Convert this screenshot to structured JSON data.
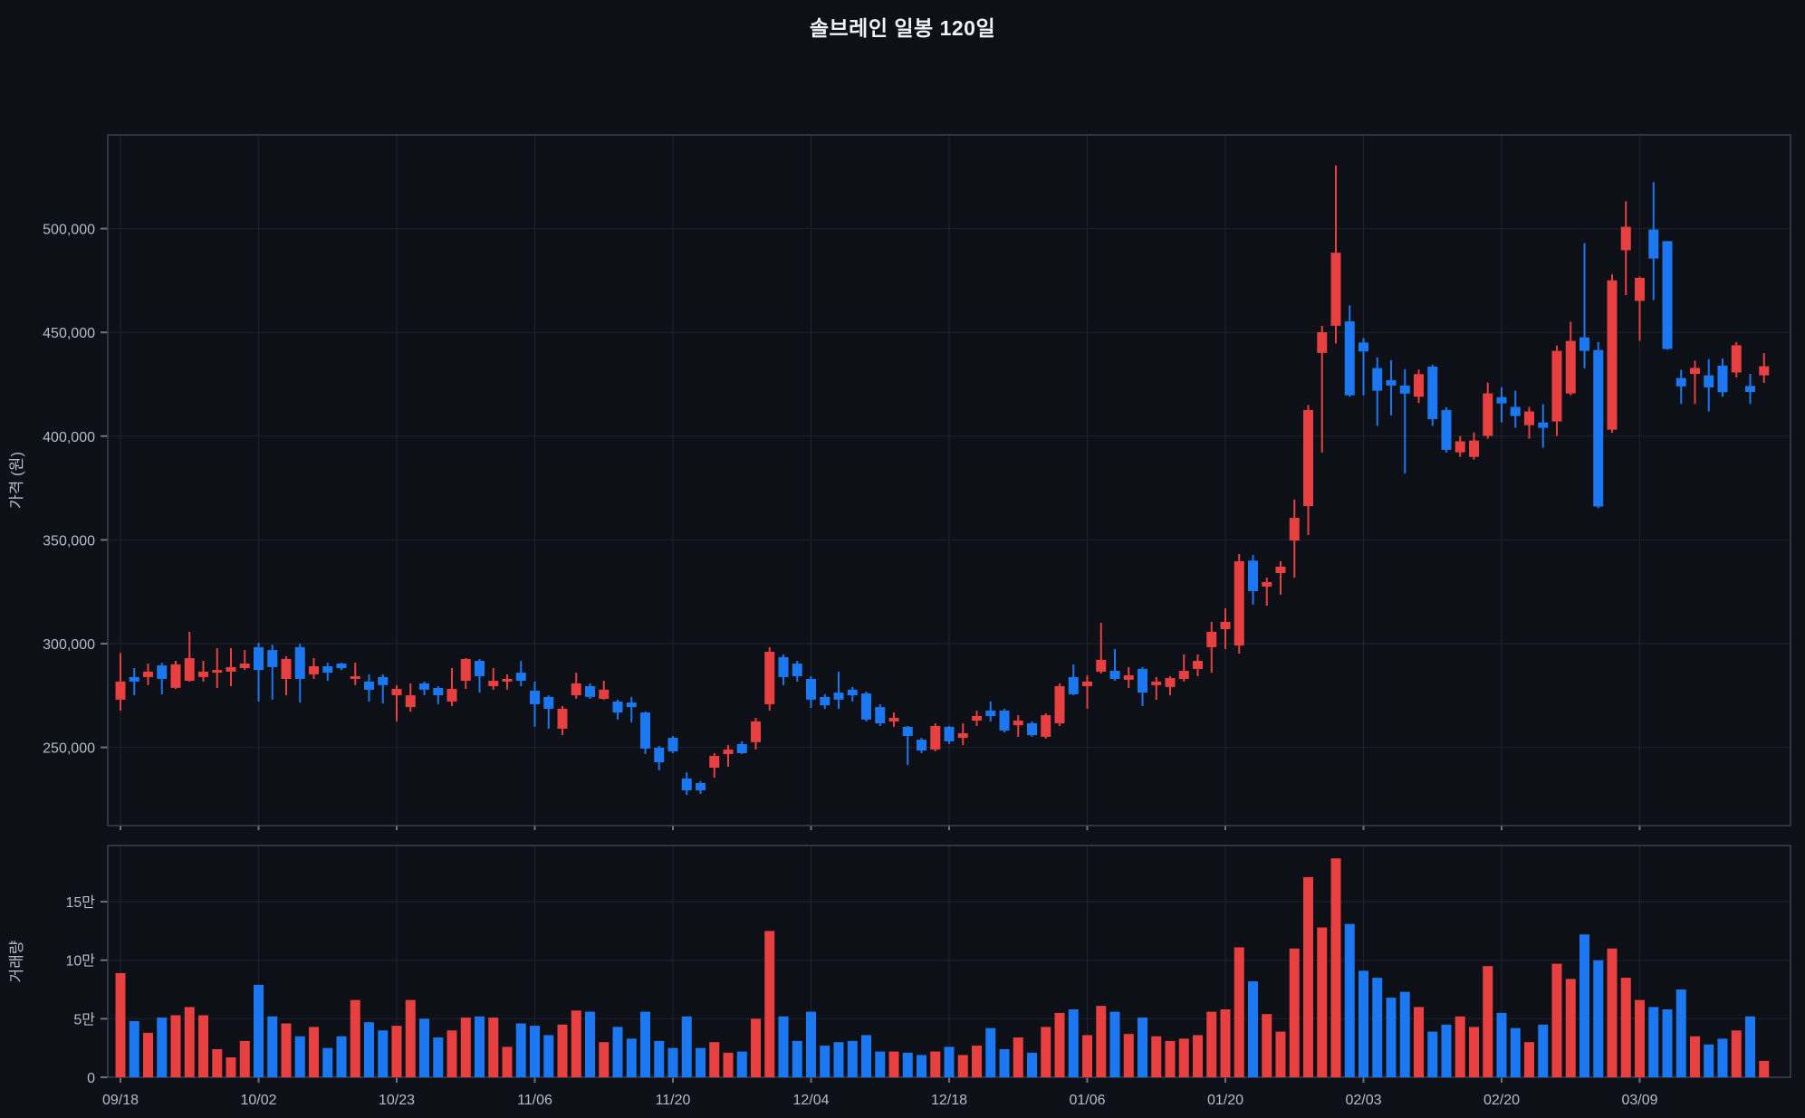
{
  "title": "솔브레인 일봉 120일",
  "colors": {
    "background": "#0d1117",
    "up": "#e84040",
    "down": "#1b78f2",
    "grid": "#1e232d",
    "border": "#3a4150",
    "tick": "#6b7280",
    "text": "#b6bcc6",
    "title_text": "#f0f3f8"
  },
  "price_axis": {
    "label": "가격 (원)",
    "ticks": [
      {
        "value": 500000,
        "label": "500,000"
      },
      {
        "value": 450000,
        "label": "450,000"
      },
      {
        "value": 400000,
        "label": "400,000"
      },
      {
        "value": 350000,
        "label": "350,000"
      },
      {
        "value": 300000,
        "label": "300,000"
      },
      {
        "value": 250000,
        "label": "250,000"
      }
    ]
  },
  "volume_axis": {
    "label": "거래량",
    "ticks": [
      {
        "value": 0,
        "label": "0"
      },
      {
        "value": 50000,
        "label": "5만"
      },
      {
        "value": 100000,
        "label": "10만"
      },
      {
        "value": 150000,
        "label": "15만"
      }
    ]
  },
  "chart_data": {
    "type": "candlestick",
    "title": "솔브레인 일봉 120일",
    "ylabel": "가격 (원)",
    "ylabel2": "거래량",
    "grid": true,
    "price_ylim": [
      212300,
      545200
    ],
    "volume_ylim": [
      0,
      198000
    ],
    "x_ticks": [
      {
        "index": 0,
        "label": "09/18"
      },
      {
        "index": 10,
        "label": "10/02"
      },
      {
        "index": 20,
        "label": "10/23"
      },
      {
        "index": 30,
        "label": "11/06"
      },
      {
        "index": 40,
        "label": "11/20"
      },
      {
        "index": 50,
        "label": "12/04"
      },
      {
        "index": 60,
        "label": "12/18"
      },
      {
        "index": 70,
        "label": "01/06"
      },
      {
        "index": 80,
        "label": "01/20"
      },
      {
        "index": 90,
        "label": "02/03"
      },
      {
        "index": 100,
        "label": "02/20"
      },
      {
        "index": 110,
        "label": "03/09"
      }
    ],
    "candles": {
      "open": [
        273000,
        283900,
        283900,
        289500,
        278700,
        282100,
        283900,
        286000,
        286500,
        288200,
        298300,
        296900,
        283000,
        298300,
        285200,
        289100,
        290400,
        283000,
        281700,
        283900,
        275100,
        269400,
        280800,
        278600,
        272100,
        282100,
        291700,
        279500,
        281700,
        286000,
        277300,
        274300,
        259000,
        275100,
        279500,
        273400,
        272100,
        271600,
        266800,
        249800,
        254600,
        235000,
        232800,
        240200,
        246800,
        251600,
        252500,
        270800,
        293500,
        290400,
        283000,
        274300,
        276400,
        277800,
        276000,
        269400,
        262500,
        259900,
        253700,
        249000,
        259900,
        254600,
        262900,
        267700,
        267700,
        260700,
        261600,
        255100,
        261600,
        283900,
        279500,
        286500,
        286900,
        282600,
        287800,
        280000,
        279100,
        283000,
        287800,
        298300,
        307000,
        299100,
        340000,
        327500,
        334000,
        349700,
        366300,
        440100,
        453200,
        455300,
        445100,
        432800,
        427000,
        424400,
        419000,
        433500,
        412600,
        392200,
        390000,
        400100,
        418800,
        414100,
        405300,
        406600,
        407100,
        420600,
        447600,
        441500,
        403100,
        489600,
        465200,
        499600,
        494000,
        428000,
        430000,
        429300,
        434000,
        430700,
        424200,
        429300
      ],
      "high": [
        295500,
        288200,
        290400,
        290800,
        291700,
        305700,
        291700,
        297800,
        297800,
        296900,
        300400,
        299500,
        293900,
        299900,
        293000,
        290800,
        290800,
        290800,
        285200,
        285200,
        280000,
        280800,
        281700,
        279500,
        288200,
        293000,
        292600,
        288200,
        285200,
        291700,
        281700,
        275100,
        269900,
        286000,
        280800,
        282100,
        273000,
        274300,
        267300,
        250700,
        255500,
        238000,
        233700,
        247200,
        251100,
        252900,
        264200,
        298300,
        294800,
        291700,
        284300,
        275600,
        286500,
        279100,
        276900,
        270800,
        266800,
        260300,
        254600,
        261600,
        260300,
        261600,
        267700,
        272100,
        268600,
        265500,
        262500,
        266400,
        280800,
        290000,
        284700,
        310000,
        297400,
        288700,
        288700,
        283900,
        284300,
        294800,
        294800,
        310500,
        317000,
        343200,
        342800,
        331800,
        339700,
        369400,
        415000,
        453200,
        530500,
        463000,
        447300,
        437900,
        436600,
        432300,
        432100,
        434500,
        413900,
        400000,
        401800,
        425800,
        423600,
        421900,
        414100,
        415400,
        443700,
        455100,
        493000,
        445400,
        478000,
        513200,
        476900,
        522400,
        494000,
        432000,
        436400,
        437100,
        437400,
        445300,
        430000,
        440000
      ],
      "low": [
        267700,
        275100,
        280000,
        275600,
        278200,
        281700,
        281700,
        278600,
        279500,
        287300,
        272100,
        273000,
        275100,
        271600,
        283000,
        282100,
        287300,
        280000,
        272100,
        271200,
        262500,
        267200,
        275100,
        270800,
        269900,
        278200,
        276400,
        277800,
        277800,
        279500,
        259900,
        259000,
        255900,
        273400,
        273400,
        273000,
        263400,
        262100,
        246800,
        238900,
        247200,
        227100,
        227600,
        235400,
        240700,
        246800,
        249000,
        267700,
        280000,
        281700,
        269000,
        268600,
        268600,
        272100,
        262500,
        260300,
        259900,
        241500,
        247200,
        248100,
        251600,
        251100,
        260300,
        262500,
        257200,
        255100,
        255100,
        254200,
        260300,
        275100,
        268600,
        285600,
        282100,
        278600,
        269900,
        273000,
        275100,
        281700,
        284300,
        286000,
        297400,
        295200,
        318800,
        318300,
        323600,
        331800,
        352400,
        392100,
        444700,
        419000,
        419700,
        405000,
        410000,
        382000,
        416000,
        405000,
        392100,
        390000,
        388700,
        398800,
        406600,
        404000,
        398800,
        394400,
        400100,
        419700,
        432700,
        365200,
        401600,
        467900,
        446000,
        465600,
        441700,
        415500,
        415500,
        411900,
        419000,
        428300,
        415500,
        425700
      ],
      "close": [
        281700,
        281700,
        286500,
        283000,
        290000,
        293000,
        286500,
        287300,
        288700,
        290400,
        287300,
        288700,
        292600,
        283000,
        289100,
        286000,
        288200,
        284300,
        277800,
        280000,
        278200,
        275100,
        277800,
        275100,
        278200,
        292600,
        284300,
        282100,
        283000,
        282100,
        270800,
        268600,
        268600,
        280800,
        274300,
        277800,
        266800,
        269400,
        249400,
        242800,
        248100,
        229300,
        229300,
        245900,
        249000,
        247200,
        262500,
        296100,
        283900,
        284300,
        273000,
        270300,
        273000,
        275100,
        263400,
        261600,
        264200,
        255500,
        248500,
        260300,
        252900,
        256800,
        265100,
        265100,
        258100,
        262900,
        255900,
        265500,
        279500,
        275600,
        281700,
        292200,
        283000,
        284700,
        276400,
        281700,
        283400,
        286900,
        291700,
        305700,
        310500,
        339700,
        325300,
        329700,
        337100,
        360600,
        412600,
        450100,
        488400,
        419700,
        440800,
        421900,
        424400,
        420500,
        429900,
        408200,
        393400,
        397500,
        397900,
        420600,
        415800,
        409700,
        411900,
        404000,
        441100,
        445900,
        441100,
        366100,
        475100,
        500900,
        476300,
        485600,
        442000,
        424000,
        432900,
        423500,
        421200,
        443800,
        421300,
        433700
      ]
    },
    "volume": [
      89000,
      48000,
      38000,
      51000,
      53000,
      60000,
      53000,
      24000,
      17000,
      31000,
      79000,
      52000,
      46000,
      35000,
      43000,
      25000,
      35000,
      66000,
      47000,
      40000,
      44000,
      66000,
      50000,
      34000,
      40000,
      51000,
      52000,
      51000,
      26000,
      46000,
      44000,
      36000,
      45000,
      57000,
      56000,
      30000,
      43000,
      33000,
      56000,
      31000,
      25000,
      52000,
      25000,
      30000,
      21000,
      22000,
      50000,
      125000,
      52000,
      31000,
      56000,
      27000,
      30000,
      31000,
      36000,
      22000,
      22000,
      21000,
      19000,
      22000,
      26000,
      19000,
      27000,
      42000,
      24000,
      34000,
      21000,
      43000,
      55000,
      58000,
      36000,
      61000,
      56000,
      37000,
      51000,
      35000,
      31000,
      33000,
      36000,
      56000,
      58000,
      111000,
      82000,
      54000,
      39000,
      110000,
      171000,
      128000,
      187000,
      131000,
      91000,
      85000,
      68000,
      73000,
      60000,
      39000,
      45000,
      52000,
      43000,
      95000,
      55000,
      42000,
      30000,
      45000,
      97000,
      84000,
      122000,
      100000,
      110000,
      85000,
      66000,
      60000,
      58000,
      75000,
      35000,
      28000,
      33000,
      40000,
      52000,
      14000
    ]
  }
}
